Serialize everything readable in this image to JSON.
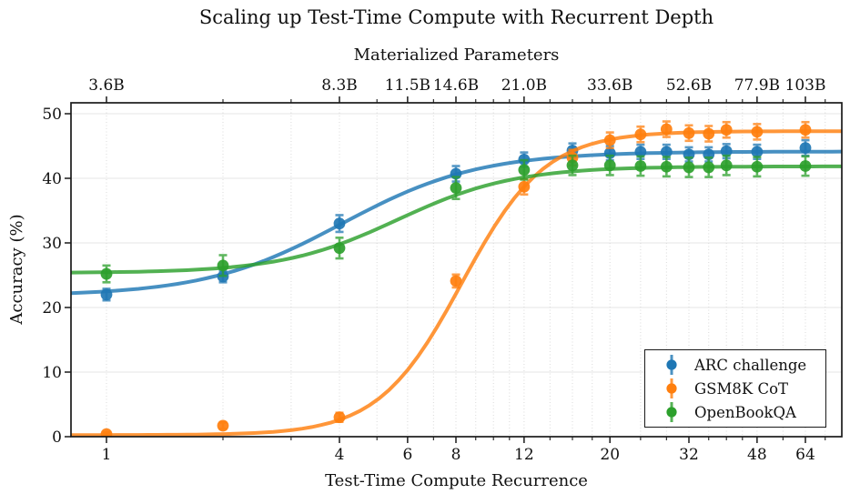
{
  "title": "Scaling up Test-Time Compute with Recurrent Depth",
  "chart_data": {
    "type": "line",
    "title": "Scaling up Test-Time Compute with Recurrent Depth",
    "top_axis": {
      "label": "Materialized Parameters",
      "tick_values": [
        1,
        4,
        6,
        8,
        12,
        20,
        32,
        48,
        64
      ],
      "tick_labels": [
        "3.6B",
        "8.3B",
        "11.5B",
        "14.6B",
        "21.0B",
        "33.6B",
        "52.6B",
        "77.9B",
        "103B"
      ]
    },
    "x_axis": {
      "label": "Test-Time Compute Recurrence",
      "scale": "log2",
      "major_ticks": [
        1,
        4,
        6,
        8,
        12,
        20,
        32,
        48,
        64
      ],
      "minor_ticks": [
        2,
        3,
        5,
        7,
        9,
        10,
        11,
        14,
        16,
        18,
        24,
        28,
        36,
        40,
        44,
        56,
        72
      ],
      "xlim": [
        0.81,
        79.4
      ]
    },
    "y_axis": {
      "label": "Accuracy (%)",
      "ticks": [
        0,
        10,
        20,
        30,
        40,
        50
      ],
      "ylim": [
        0,
        51.7
      ]
    },
    "grid": true,
    "x": [
      1,
      2,
      4,
      8,
      12,
      16,
      20,
      24,
      28,
      32,
      36,
      40,
      48,
      64
    ],
    "series": [
      {
        "name": "ARC challenge",
        "color": "#1f77b4",
        "values": [
          22.0,
          24.8,
          33.0,
          40.7,
          42.9,
          44.3,
          43.9,
          44.1,
          44.1,
          43.7,
          43.7,
          44.2,
          44.1,
          44.7
        ],
        "errors": [
          0.9,
          0.9,
          1.3,
          1.2,
          1.1,
          1.1,
          1.1,
          1.1,
          1.1,
          1.1,
          1.1,
          1.1,
          1.1,
          1.2
        ],
        "fit": {
          "lo": 21.8,
          "hi": 44.15,
          "k": 1.7,
          "t0": 2.02
        }
      },
      {
        "name": "GSM8K CoT",
        "color": "#ff7f0e",
        "values": [
          0.4,
          1.7,
          3.0,
          24.1,
          38.7,
          43.2,
          45.9,
          46.8,
          47.6,
          47.0,
          46.9,
          47.5,
          47.2,
          47.5
        ],
        "errors": [
          0.3,
          0.5,
          0.7,
          1.0,
          1.2,
          1.2,
          1.2,
          1.2,
          1.2,
          1.2,
          1.2,
          1.2,
          1.2,
          1.2
        ],
        "fit": {
          "lo": 0.25,
          "hi": 47.3,
          "k": 2.8,
          "t0": 3.05
        }
      },
      {
        "name": "OpenBookQA",
        "color": "#2ca02c",
        "values": [
          25.2,
          26.5,
          29.2,
          38.5,
          41.3,
          42.0,
          42.0,
          41.9,
          41.8,
          41.7,
          41.7,
          42.0,
          41.8,
          41.9
        ],
        "errors": [
          1.3,
          1.6,
          1.6,
          1.7,
          1.5,
          1.5,
          1.5,
          1.5,
          1.5,
          1.5,
          1.5,
          1.5,
          1.5,
          1.5
        ],
        "fit": {
          "lo": 25.35,
          "hi": 41.85,
          "k": 2.0,
          "t0": 2.5
        }
      }
    ],
    "legend": {
      "position": "lower right",
      "entries": [
        "ARC challenge",
        "GSM8K CoT",
        "OpenBookQA"
      ]
    }
  }
}
